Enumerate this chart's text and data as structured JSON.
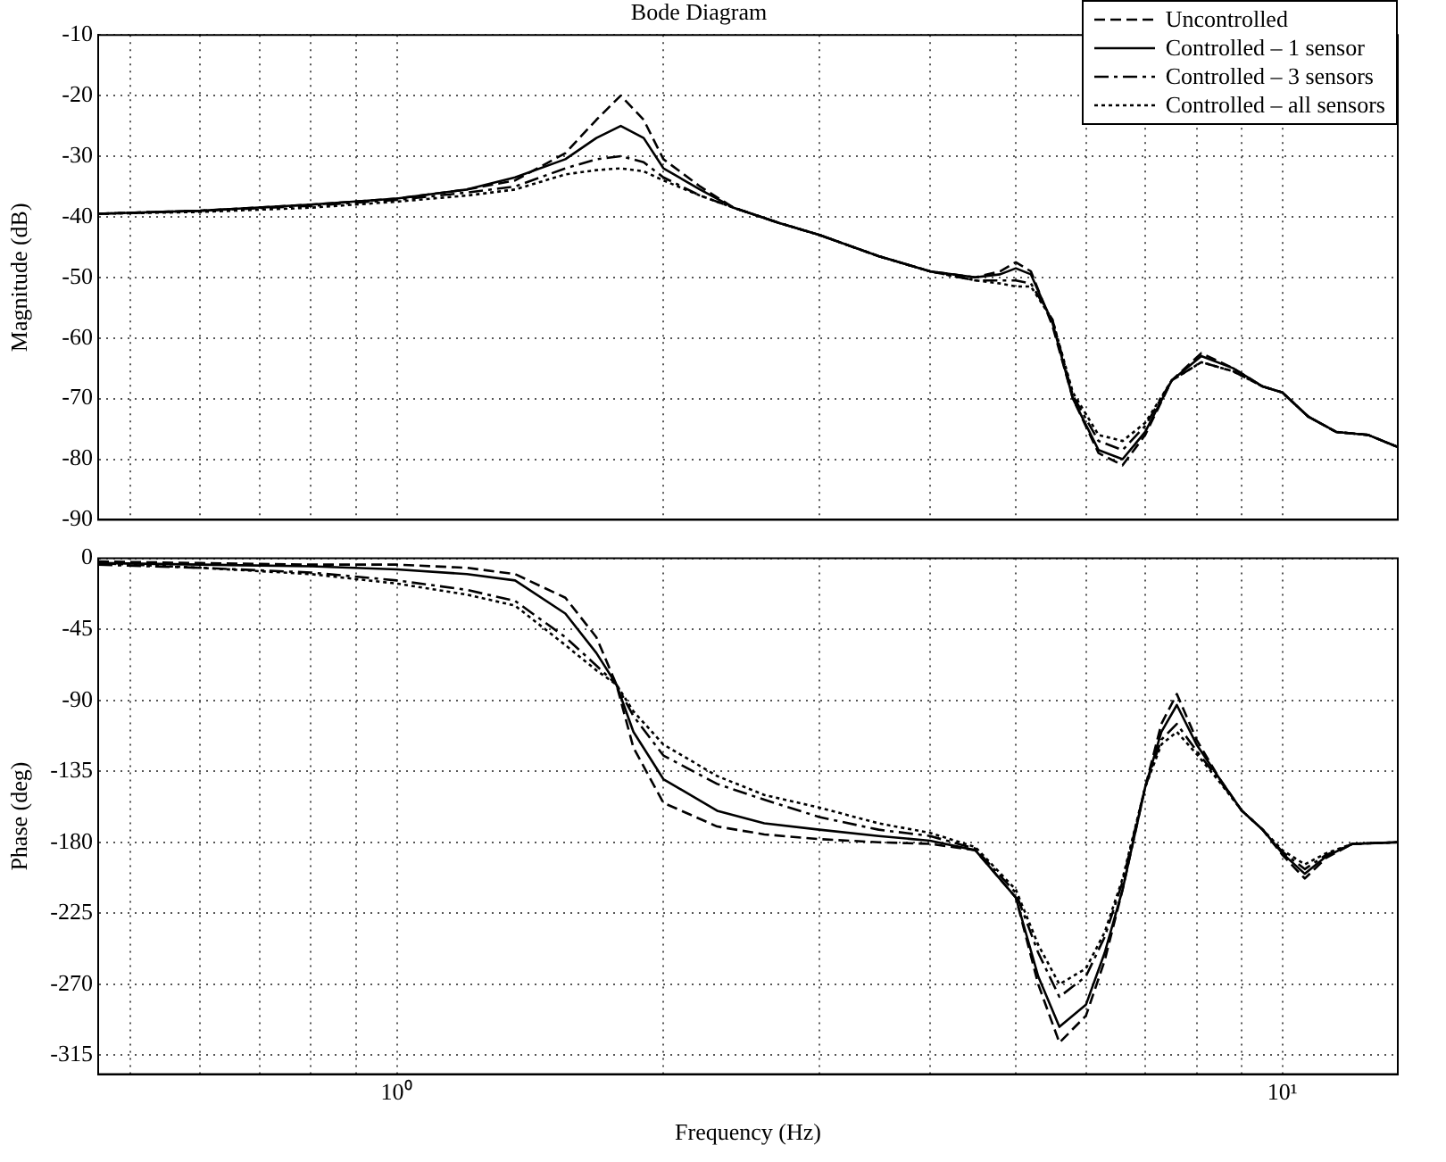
{
  "chart_data": [
    {
      "type": "line",
      "title": "Bode Diagram",
      "ylabel": "Magnitude (dB)",
      "legend": "top right",
      "grid": true,
      "log": "x",
      "marker": "none",
      "tick_labels": "y",
      "xlim": [
        0.46,
        13.5
      ],
      "xticks": [
        {
          "value": 0.5,
          "label": null
        },
        {
          "value": 0.6,
          "label": null
        },
        {
          "value": 0.7,
          "label": null
        },
        {
          "value": 0.8,
          "label": null
        },
        {
          "value": 0.9,
          "label": null
        },
        {
          "value": 1,
          "label": null
        },
        {
          "value": 2,
          "label": null
        },
        {
          "value": 3,
          "label": null
        },
        {
          "value": 4,
          "label": null
        },
        {
          "value": 5,
          "label": null
        },
        {
          "value": 6,
          "label": null
        },
        {
          "value": 7,
          "label": null
        },
        {
          "value": 8,
          "label": null
        },
        {
          "value": 9,
          "label": null
        },
        {
          "value": 10,
          "label": null
        }
      ],
      "ylim": [
        -90,
        -10
      ],
      "yticks": [
        -90,
        -80,
        -70,
        -60,
        -50,
        -40,
        -30,
        -20,
        -10
      ],
      "x": [
        0.46,
        0.6,
        0.8,
        1,
        1.2,
        1.36,
        1.55,
        1.68,
        1.79,
        1.9,
        2,
        2.2,
        2.4,
        2.7,
        3,
        3.5,
        4,
        4.5,
        4.8,
        5,
        5.2,
        5.5,
        5.8,
        6.2,
        6.6,
        7,
        7.5,
        8.1,
        8.8,
        9.5,
        10,
        10.7,
        11.5,
        12.5,
        13.5
      ],
      "series": [
        {
          "name": "Uncontrolled",
          "color": "#000000",
          "line_style": "dashed",
          "values": [
            -39.5,
            -39,
            -38,
            -37,
            -35.5,
            -34,
            -29.5,
            -24,
            -20,
            -24,
            -30.5,
            -35,
            -38.5,
            -41,
            -43,
            -46.5,
            -49,
            -50,
            -49,
            -47.5,
            -49,
            -58,
            -70,
            -79,
            -81,
            -76,
            -67,
            -62.5,
            -65,
            -68,
            -69,
            -73,
            -75.5,
            -76,
            -78
          ]
        },
        {
          "name": "Controlled – 1 sensor",
          "color": "#000000",
          "line_style": "solid",
          "values": [
            -39.5,
            -39,
            -38,
            -37,
            -35.5,
            -33.5,
            -30.5,
            -27,
            -25,
            -27,
            -32,
            -35.5,
            -38.5,
            -41,
            -43,
            -46.5,
            -49,
            -50,
            -49.5,
            -48.5,
            -49.5,
            -57.5,
            -70,
            -78.5,
            -80,
            -75.5,
            -67,
            -63,
            -65,
            -68,
            -69,
            -73,
            -75.5,
            -76,
            -78
          ]
        },
        {
          "name": "Controlled – 3 sensors",
          "color": "#000000",
          "line_style": "dashdot",
          "values": [
            -39.5,
            -39,
            -38.2,
            -37.2,
            -36,
            -35,
            -32,
            -30.5,
            -30,
            -31,
            -33.5,
            -36.5,
            -38.5,
            -41,
            -43,
            -46.5,
            -49,
            -50.5,
            -50.5,
            -50.5,
            -51,
            -57,
            -69.5,
            -77,
            -78.5,
            -74.5,
            -67,
            -64,
            -65.5,
            -68,
            -69,
            -73,
            -75.5,
            -76,
            -78
          ]
        },
        {
          "name": "Controlled – all sensors",
          "color": "#000000",
          "line_style": "dotted",
          "values": [
            -39.5,
            -39.2,
            -38.5,
            -37.5,
            -36.5,
            -35.5,
            -33,
            -32.3,
            -32,
            -32.5,
            -34,
            -36.5,
            -38.5,
            -41,
            -43,
            -46.5,
            -49,
            -50.5,
            -51,
            -51.5,
            -51.5,
            -57,
            -69,
            -76,
            -77,
            -74,
            -67,
            -64,
            -65.5,
            -68,
            -69,
            -73,
            -75.5,
            -76,
            -78
          ]
        }
      ]
    },
    {
      "type": "line",
      "xlabel": "Frequency (Hz)",
      "ylabel": "Phase (deg)",
      "grid": true,
      "log": "x",
      "marker": "none",
      "xlim": [
        0.46,
        13.5
      ],
      "xticks": [
        {
          "value": 0.5,
          "label": null
        },
        {
          "value": 0.6,
          "label": null
        },
        {
          "value": 0.7,
          "label": null
        },
        {
          "value": 0.8,
          "label": null
        },
        {
          "value": 0.9,
          "label": null
        },
        {
          "value": 1,
          "label": "10⁰"
        },
        {
          "value": 2,
          "label": null
        },
        {
          "value": 3,
          "label": null
        },
        {
          "value": 4,
          "label": null
        },
        {
          "value": 5,
          "label": null
        },
        {
          "value": 6,
          "label": null
        },
        {
          "value": 7,
          "label": null
        },
        {
          "value": 8,
          "label": null
        },
        {
          "value": 9,
          "label": null
        },
        {
          "value": 10,
          "label": "10¹"
        }
      ],
      "ylim": [
        -327,
        0
      ],
      "yticks": [
        -315,
        -270,
        -225,
        -180,
        -135,
        -90,
        -45,
        0
      ],
      "x": [
        0.46,
        0.6,
        0.8,
        1,
        1.2,
        1.36,
        1.55,
        1.68,
        1.77,
        1.85,
        2,
        2.3,
        2.6,
        3,
        3.5,
        4,
        4.5,
        5,
        5.3,
        5.6,
        6,
        6.3,
        6.6,
        7,
        7.3,
        7.6,
        8,
        8.5,
        9,
        9.5,
        10,
        10.6,
        11.2,
        12,
        13.5
      ],
      "series": [
        {
          "color": "#000000",
          "line_style": "dashed",
          "values": [
            -2,
            -3,
            -4,
            -4,
            -6,
            -10,
            -25,
            -50,
            -80,
            -120,
            -155,
            -170,
            -175,
            -178,
            -180,
            -181,
            -185,
            -215,
            -270,
            -307,
            -290,
            -255,
            -210,
            -145,
            -105,
            -86,
            -115,
            -140,
            -160,
            -172,
            -188,
            -203,
            -190,
            -181,
            -180
          ]
        },
        {
          "color": "#000000",
          "line_style": "solid",
          "values": [
            -3,
            -4,
            -5,
            -7,
            -10,
            -14,
            -35,
            -60,
            -80,
            -110,
            -140,
            -160,
            -168,
            -172,
            -176,
            -179,
            -185,
            -215,
            -265,
            -297,
            -283,
            -250,
            -210,
            -145,
            -110,
            -93,
            -118,
            -140,
            -160,
            -172,
            -187,
            -200,
            -189,
            -181,
            -180
          ]
        },
        {
          "color": "#000000",
          "line_style": "dashdot",
          "values": [
            -4,
            -6,
            -9,
            -14,
            -20,
            -27,
            -50,
            -68,
            -80,
            -100,
            -125,
            -143,
            -153,
            -164,
            -172,
            -176,
            -184,
            -212,
            -250,
            -278,
            -265,
            -240,
            -205,
            -145,
            -115,
            -105,
            -122,
            -141,
            -160,
            -172,
            -186,
            -197,
            -188,
            -181,
            -180
          ]
        },
        {
          "color": "#000000",
          "line_style": "dotted",
          "values": [
            -3,
            -6,
            -10,
            -16,
            -23,
            -30,
            -55,
            -71,
            -80,
            -97,
            -118,
            -138,
            -150,
            -158,
            -168,
            -174,
            -183,
            -210,
            -245,
            -270,
            -260,
            -237,
            -203,
            -145,
            -118,
            -110,
            -124,
            -142,
            -160,
            -172,
            -185,
            -194,
            -187,
            -181,
            -180
          ]
        }
      ]
    }
  ]
}
